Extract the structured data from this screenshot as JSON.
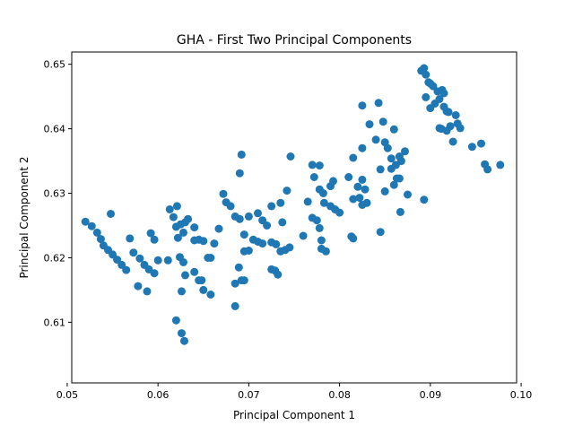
{
  "chart_data": {
    "type": "scatter",
    "title": "GHA - First Two Principal Components",
    "xlabel": "Principal Component 1",
    "ylabel": "Principal Component 2",
    "xlim": [
      0.0505,
      0.0995
    ],
    "ylim": [
      0.6006,
      0.6519
    ],
    "xticks": [
      0.05,
      0.06,
      0.07,
      0.08,
      0.09,
      0.1
    ],
    "xtick_labels": [
      "0.05",
      "0.06",
      "0.07",
      "0.08",
      "0.09",
      "0.10"
    ],
    "yticks": [
      0.61,
      0.62,
      0.63,
      0.64,
      0.65
    ],
    "ytick_labels": [
      "0.61",
      "0.62",
      "0.63",
      "0.64",
      "0.65"
    ],
    "grid": false,
    "marker_color": "#1f77b4",
    "points": [
      [
        0.052,
        0.6256
      ],
      [
        0.0527,
        0.6249
      ],
      [
        0.0533,
        0.6239
      ],
      [
        0.0537,
        0.6229
      ],
      [
        0.054,
        0.6219
      ],
      [
        0.0545,
        0.6212
      ],
      [
        0.055,
        0.6205
      ],
      [
        0.0555,
        0.6197
      ],
      [
        0.056,
        0.6189
      ],
      [
        0.0565,
        0.6181
      ],
      [
        0.0548,
        0.6268
      ],
      [
        0.0569,
        0.623
      ],
      [
        0.0573,
        0.6208
      ],
      [
        0.058,
        0.6199
      ],
      [
        0.0585,
        0.6189
      ],
      [
        0.059,
        0.6182
      ],
      [
        0.0596,
        0.6176
      ],
      [
        0.06,
        0.6196
      ],
      [
        0.0578,
        0.6156
      ],
      [
        0.0588,
        0.6148
      ],
      [
        0.0592,
        0.6238
      ],
      [
        0.0596,
        0.6228
      ],
      [
        0.0611,
        0.6196
      ],
      [
        0.0613,
        0.6275
      ],
      [
        0.0617,
        0.6263
      ],
      [
        0.0621,
        0.628
      ],
      [
        0.062,
        0.6248
      ],
      [
        0.0625,
        0.6252
      ],
      [
        0.0622,
        0.6231
      ],
      [
        0.063,
        0.6255
      ],
      [
        0.0628,
        0.6239
      ],
      [
        0.0633,
        0.626
      ],
      [
        0.064,
        0.6247
      ],
      [
        0.0645,
        0.6228
      ],
      [
        0.064,
        0.6227
      ],
      [
        0.065,
        0.6226
      ],
      [
        0.0655,
        0.62
      ],
      [
        0.0658,
        0.62
      ],
      [
        0.0662,
        0.6222
      ],
      [
        0.0667,
        0.6245
      ],
      [
        0.0624,
        0.6201
      ],
      [
        0.0628,
        0.6193
      ],
      [
        0.063,
        0.6173
      ],
      [
        0.064,
        0.6178
      ],
      [
        0.0645,
        0.6165
      ],
      [
        0.0648,
        0.6165
      ],
      [
        0.065,
        0.615
      ],
      [
        0.0658,
        0.6143
      ],
      [
        0.0626,
        0.6148
      ],
      [
        0.0626,
        0.6083
      ],
      [
        0.0629,
        0.6071
      ],
      [
        0.062,
        0.6103
      ],
      [
        0.0685,
        0.6125
      ],
      [
        0.0685,
        0.616
      ],
      [
        0.0689,
        0.6185
      ],
      [
        0.0692,
        0.6165
      ],
      [
        0.0695,
        0.6165
      ],
      [
        0.0695,
        0.621
      ],
      [
        0.07,
        0.6211
      ],
      [
        0.0705,
        0.6228
      ],
      [
        0.071,
        0.6225
      ],
      [
        0.0715,
        0.6222
      ],
      [
        0.072,
        0.625
      ],
      [
        0.0725,
        0.6224
      ],
      [
        0.073,
        0.6221
      ],
      [
        0.0735,
        0.621
      ],
      [
        0.074,
        0.6212
      ],
      [
        0.0745,
        0.6216
      ],
      [
        0.0725,
        0.6182
      ],
      [
        0.0729,
        0.618
      ],
      [
        0.0732,
        0.6174
      ],
      [
        0.069,
        0.626
      ],
      [
        0.0695,
        0.6236
      ],
      [
        0.07,
        0.6264
      ],
      [
        0.0685,
        0.6264
      ],
      [
        0.068,
        0.628
      ],
      [
        0.0675,
        0.6286
      ],
      [
        0.0672,
        0.6299
      ],
      [
        0.069,
        0.6331
      ],
      [
        0.0692,
        0.636
      ],
      [
        0.071,
        0.6269
      ],
      [
        0.0715,
        0.6258
      ],
      [
        0.0725,
        0.628
      ],
      [
        0.0735,
        0.6285
      ],
      [
        0.0737,
        0.6255
      ],
      [
        0.0742,
        0.6304
      ],
      [
        0.0746,
        0.6357
      ],
      [
        0.076,
        0.6234
      ],
      [
        0.0765,
        0.6287
      ],
      [
        0.077,
        0.6262
      ],
      [
        0.0775,
        0.6258
      ],
      [
        0.0778,
        0.6246
      ],
      [
        0.078,
        0.6227
      ],
      [
        0.0785,
        0.621
      ],
      [
        0.078,
        0.6214
      ],
      [
        0.077,
        0.6344
      ],
      [
        0.0772,
        0.6325
      ],
      [
        0.0778,
        0.6306
      ],
      [
        0.0778,
        0.6343
      ],
      [
        0.0782,
        0.63
      ],
      [
        0.0783,
        0.6285
      ],
      [
        0.079,
        0.6311
      ],
      [
        0.079,
        0.628
      ],
      [
        0.0793,
        0.6319
      ],
      [
        0.0795,
        0.6275
      ],
      [
        0.08,
        0.627
      ],
      [
        0.081,
        0.6325
      ],
      [
        0.0813,
        0.6233
      ],
      [
        0.0815,
        0.623
      ],
      [
        0.0815,
        0.6355
      ],
      [
        0.0815,
        0.6291
      ],
      [
        0.082,
        0.631
      ],
      [
        0.0822,
        0.6293
      ],
      [
        0.0825,
        0.6321
      ],
      [
        0.0828,
        0.6306
      ],
      [
        0.0825,
        0.6282
      ],
      [
        0.083,
        0.6285
      ],
      [
        0.0825,
        0.637
      ],
      [
        0.0825,
        0.6436
      ],
      [
        0.0833,
        0.6407
      ],
      [
        0.084,
        0.6383
      ],
      [
        0.0843,
        0.644
      ],
      [
        0.0848,
        0.6411
      ],
      [
        0.0845,
        0.6337
      ],
      [
        0.0845,
        0.624
      ],
      [
        0.085,
        0.6379
      ],
      [
        0.0853,
        0.637
      ],
      [
        0.085,
        0.6303
      ],
      [
        0.0857,
        0.6354
      ],
      [
        0.0857,
        0.6338
      ],
      [
        0.086,
        0.6399
      ],
      [
        0.086,
        0.6313
      ],
      [
        0.0862,
        0.6344
      ],
      [
        0.0863,
        0.6323
      ],
      [
        0.0866,
        0.6357
      ],
      [
        0.0866,
        0.6323
      ],
      [
        0.0868,
        0.635
      ],
      [
        0.0867,
        0.6271
      ],
      [
        0.0872,
        0.6365
      ],
      [
        0.0875,
        0.6298
      ],
      [
        0.089,
        0.649
      ],
      [
        0.0893,
        0.6494
      ],
      [
        0.0895,
        0.6484
      ],
      [
        0.0898,
        0.6472
      ],
      [
        0.0895,
        0.6449
      ],
      [
        0.09,
        0.6432
      ],
      [
        0.0903,
        0.6466
      ],
      [
        0.0905,
        0.6439
      ],
      [
        0.0908,
        0.6458
      ],
      [
        0.091,
        0.6446
      ],
      [
        0.0913,
        0.646
      ],
      [
        0.0915,
        0.6455
      ],
      [
        0.0915,
        0.6434
      ],
      [
        0.0918,
        0.6427
      ],
      [
        0.092,
        0.6426
      ],
      [
        0.0912,
        0.64
      ],
      [
        0.0918,
        0.6397
      ],
      [
        0.0922,
        0.6404
      ],
      [
        0.0925,
        0.638
      ],
      [
        0.0928,
        0.6421
      ],
      [
        0.093,
        0.6408
      ],
      [
        0.0933,
        0.6401
      ],
      [
        0.0893,
        0.629
      ],
      [
        0.0946,
        0.6372
      ],
      [
        0.0956,
        0.6377
      ],
      [
        0.096,
        0.6345
      ],
      [
        0.0963,
        0.6337
      ],
      [
        0.0977,
        0.6344
      ],
      [
        0.091,
        0.6401
      ],
      [
        0.09,
        0.647
      ]
    ]
  }
}
